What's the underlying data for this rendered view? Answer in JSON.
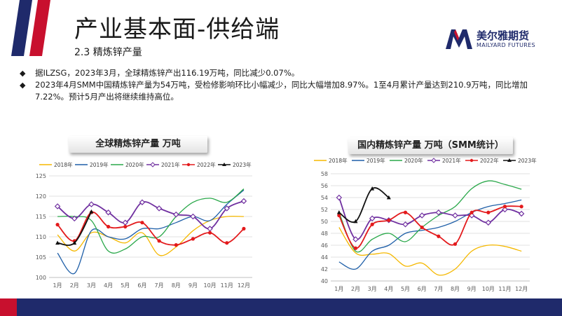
{
  "header": {
    "title": "产业基本面-供给端",
    "subtitle": "2.3 精炼锌产量",
    "logo_cn": "美尔雅期货",
    "logo_en": "MAILYARD FUTURES"
  },
  "bullets": [
    "据ILZSG，2023年3月，全球精炼锌产出116.19万吨，同比减少0.07%。",
    "2023年4月SMM中国精炼锌产量为54万吨，受检修影响环比小幅减少，同比大幅增加8.97%。1至4月累计产量达到210.9万吨，同比增加7.22%。预计5月产出将继续维持高位。"
  ],
  "colors": {
    "brand_blue": "#1f2a6b",
    "brand_red": "#c8102e"
  },
  "chart_data": [
    {
      "type": "line",
      "title": "全球精炼锌产量 万吨",
      "categories": [
        "1月",
        "2月",
        "3月",
        "4月",
        "5月",
        "6月",
        "7月",
        "8月",
        "9月",
        "10月",
        "11月",
        "12月"
      ],
      "ylim": [
        100,
        125
      ],
      "yticks": [
        100,
        105,
        110,
        115,
        120,
        125
      ],
      "legend_position": "top",
      "series": [
        {
          "name": "2018年",
          "color": "#f5b800",
          "marker": "none",
          "values": [
            110.5,
            106.5,
            111,
            110,
            108.5,
            111,
            105.5,
            107.5,
            111.5,
            114,
            115,
            115
          ]
        },
        {
          "name": "2019年",
          "color": "#1f5fa8",
          "marker": "none",
          "values": [
            106,
            101,
            111.5,
            110,
            109.5,
            112,
            112,
            113.5,
            115,
            114,
            118,
            121.5
          ]
        },
        {
          "name": "2020年",
          "color": "#2aa84a",
          "marker": "none",
          "values": [
            115,
            115,
            114,
            106.5,
            107,
            110,
            110,
            115,
            118.5,
            119.5,
            118.5,
            121.8
          ]
        },
        {
          "name": "2021年",
          "color": "#7030a0",
          "marker": "diamond",
          "values": [
            117.5,
            114.5,
            118,
            116,
            113.5,
            118.5,
            117,
            115.5,
            115,
            112,
            117,
            118.8
          ]
        },
        {
          "name": "2022年",
          "color": "#e31a1c",
          "marker": "circle",
          "values": [
            113,
            109,
            116,
            112.5,
            112.5,
            113.5,
            109,
            108,
            109.5,
            111,
            108.5,
            112
          ]
        },
        {
          "name": "2023年",
          "color": "#111111",
          "marker": "triangle",
          "values": [
            108.5,
            108.5,
            116.2,
            null,
            null,
            null,
            null,
            null,
            null,
            null,
            null,
            null
          ]
        }
      ]
    },
    {
      "type": "line",
      "title": "国内精炼锌产量 万吨（SMM统计）",
      "categories": [
        "1月",
        "2月",
        "3月",
        "4月",
        "5月",
        "6月",
        "7月",
        "8月",
        "9月",
        "10月",
        "11月",
        "12月"
      ],
      "ylim": [
        40,
        58
      ],
      "yticks": [
        40,
        42,
        44,
        46,
        48,
        50,
        52,
        54,
        56,
        58
      ],
      "legend_position": "top",
      "series": [
        {
          "name": "2018年",
          "color": "#f5b800",
          "marker": "none",
          "values": [
            49,
            44.7,
            44.5,
            44.6,
            42.5,
            43,
            41,
            42,
            45,
            46,
            45.8,
            45
          ]
        },
        {
          "name": "2019年",
          "color": "#1f5fa8",
          "marker": "none",
          "values": [
            43.2,
            42,
            45,
            46,
            48,
            48.5,
            49,
            50,
            51.5,
            52.5,
            53,
            53.6
          ]
        },
        {
          "name": "2020年",
          "color": "#2aa84a",
          "marker": "none",
          "values": [
            51.5,
            45,
            47,
            48,
            46.6,
            49,
            51,
            52.5,
            55.5,
            56.8,
            56.2,
            55.4
          ]
        },
        {
          "name": "2021年",
          "color": "#7030a0",
          "marker": "diamond",
          "values": [
            54,
            47,
            50.5,
            50.2,
            49.5,
            51,
            51.5,
            51,
            51,
            49.8,
            52,
            51.3
          ]
        },
        {
          "name": "2022年",
          "color": "#e31a1c",
          "marker": "circle",
          "values": [
            51,
            45.5,
            49.5,
            50.2,
            51.5,
            49,
            47.5,
            46.2,
            51.5,
            51.5,
            52.5,
            52.5
          ]
        },
        {
          "name": "2023年",
          "color": "#111111",
          "marker": "triangle",
          "values": [
            51.5,
            50,
            55.5,
            54,
            null,
            null,
            null,
            null,
            null,
            null,
            null,
            null
          ]
        }
      ]
    }
  ]
}
